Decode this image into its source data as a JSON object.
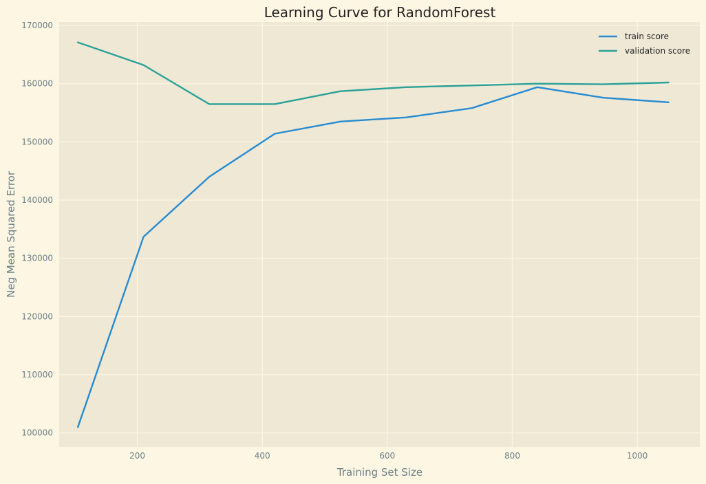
{
  "chart_data": {
    "type": "line",
    "title": "Learning Curve for RandomForest",
    "xlabel": "Training Set Size",
    "ylabel": "Neg Mean Squared Error",
    "xlim": [
      75,
      1100
    ],
    "ylim": [
      97600,
      170600
    ],
    "xticks": [
      200,
      400,
      600,
      800,
      1000
    ],
    "yticks": [
      100000,
      110000,
      120000,
      130000,
      140000,
      150000,
      160000,
      170000
    ],
    "grid": true,
    "legend_position": "top-right",
    "x": [
      105,
      210,
      315,
      420,
      525,
      630,
      735,
      840,
      945,
      1050
    ],
    "series": [
      {
        "name": "train score",
        "color": "#268bd2",
        "values": [
          101000,
          133700,
          144000,
          151400,
          153500,
          154200,
          155800,
          159400,
          157600,
          156800
        ]
      },
      {
        "name": "validation score",
        "color": "#2aa198",
        "values": [
          167100,
          163200,
          156500,
          156500,
          158700,
          159400,
          159700,
          160000,
          159900,
          160200
        ]
      }
    ],
    "background_color": "#fdf6e3",
    "plot_background_color": "#eee8d5",
    "grid_color": "#fdf6e3"
  }
}
